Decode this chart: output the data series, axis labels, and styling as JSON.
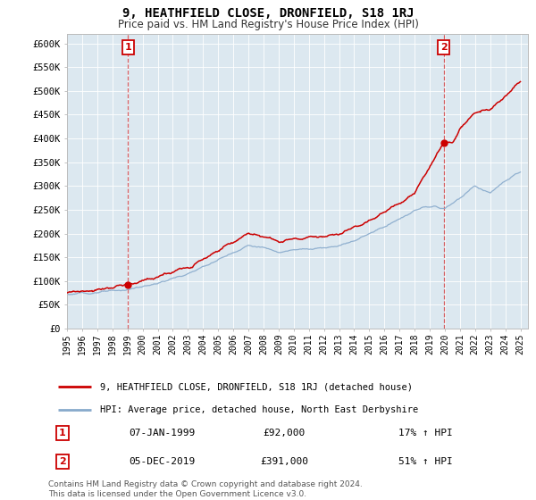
{
  "title": "9, HEATHFIELD CLOSE, DRONFIELD, S18 1RJ",
  "subtitle": "Price paid vs. HM Land Registry's House Price Index (HPI)",
  "legend_line1": "9, HEATHFIELD CLOSE, DRONFIELD, S18 1RJ (detached house)",
  "legend_line2": "HPI: Average price, detached house, North East Derbyshire",
  "annotation1_label": "1",
  "annotation1_date": "07-JAN-1999",
  "annotation1_price": "£92,000",
  "annotation1_hpi": "17% ↑ HPI",
  "annotation2_label": "2",
  "annotation2_date": "05-DEC-2019",
  "annotation2_price": "£391,000",
  "annotation2_hpi": "51% ↑ HPI",
  "footer": "Contains HM Land Registry data © Crown copyright and database right 2024.\nThis data is licensed under the Open Government Licence v3.0.",
  "property_color": "#cc0000",
  "hpi_color": "#88aacc",
  "sale1_x": 1999.04,
  "sale1_y": 92000,
  "sale2_x": 2019.92,
  "sale2_y": 391000,
  "xmin": 1995,
  "xmax": 2025.5,
  "ymin": 0,
  "ymax": 620000,
  "yticks": [
    0,
    50000,
    100000,
    150000,
    200000,
    250000,
    300000,
    350000,
    400000,
    450000,
    500000,
    550000,
    600000
  ],
  "ytick_labels": [
    "£0",
    "£50K",
    "£100K",
    "£150K",
    "£200K",
    "£250K",
    "£300K",
    "£350K",
    "£400K",
    "£450K",
    "£500K",
    "£550K",
    "£600K"
  ],
  "xticks": [
    1995,
    1996,
    1997,
    1998,
    1999,
    2000,
    2001,
    2002,
    2003,
    2004,
    2005,
    2006,
    2007,
    2008,
    2009,
    2010,
    2011,
    2012,
    2013,
    2014,
    2015,
    2016,
    2017,
    2018,
    2019,
    2020,
    2021,
    2022,
    2023,
    2024,
    2025
  ],
  "bg_color": "#e8eef5",
  "chart_bg": "#dce8f0"
}
